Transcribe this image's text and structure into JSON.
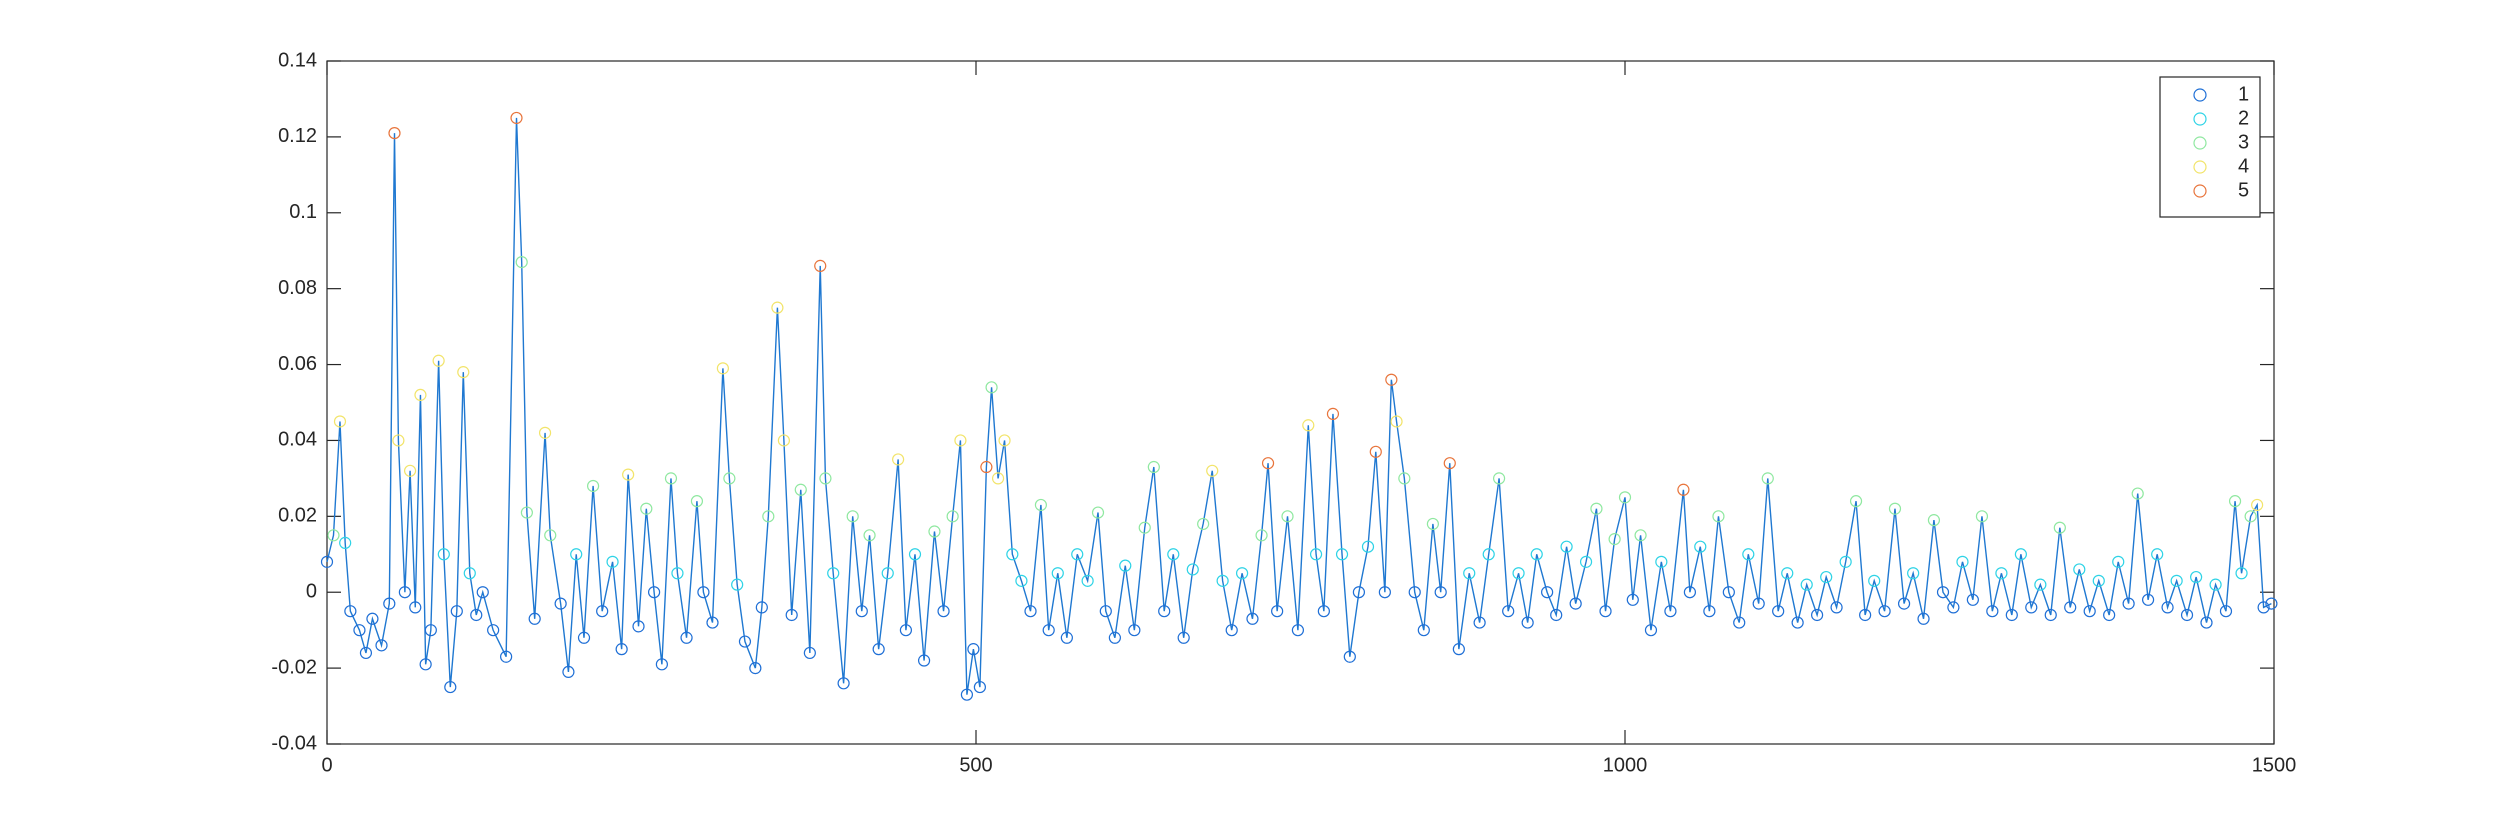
{
  "chart_data": {
    "type": "line",
    "xlim": [
      0,
      1500
    ],
    "xticks": [
      0,
      500,
      1000,
      1500
    ],
    "ylim": [
      -0.04,
      0.14
    ],
    "yticks": [
      -0.04,
      -0.02,
      0,
      0.02,
      0.04,
      0.06,
      0.08,
      0.1,
      0.12,
      0.14
    ],
    "line_color": "#1f78d1",
    "legend": "upper right",
    "series": [
      {
        "name": "1",
        "color": "#1f6fd6"
      },
      {
        "name": "2",
        "color": "#2ed3e6"
      },
      {
        "name": "3",
        "color": "#8fe8a0"
      },
      {
        "name": "4",
        "color": "#f2e46a"
      },
      {
        "name": "5",
        "color": "#e8743b"
      }
    ],
    "x": [
      0,
      5,
      10,
      14,
      18,
      25,
      30,
      35,
      42,
      48,
      52,
      55,
      60,
      64,
      68,
      72,
      76,
      80,
      86,
      90,
      95,
      100,
      105,
      110,
      115,
      120,
      128,
      138,
      146,
      150,
      154,
      160,
      168,
      172,
      180,
      186,
      192,
      198,
      205,
      212,
      220,
      227,
      232,
      240,
      246,
      252,
      258,
      265,
      270,
      277,
      285,
      290,
      297,
      305,
      310,
      316,
      322,
      330,
      335,
      340,
      347,
      352,
      358,
      365,
      372,
      380,
      384,
      390,
      398,
      405,
      412,
      418,
      425,
      432,
      440,
      446,
      453,
      460,
      468,
      475,
      482,
      488,
      493,
      498,
      503,
      508,
      512,
      517,
      522,
      528,
      535,
      542,
      550,
      556,
      563,
      570,
      578,
      586,
      594,
      600,
      607,
      615,
      622,
      630,
      637,
      645,
      652,
      660,
      667,
      675,
      682,
      690,
      697,
      705,
      713,
      720,
      725,
      732,
      740,
      748,
      756,
      762,
      768,
      775,
      782,
      788,
      795,
      802,
      808,
      815,
      820,
      824,
      830,
      838,
      845,
      852,
      858,
      865,
      872,
      880,
      888,
      895,
      903,
      910,
      918,
      925,
      932,
      940,
      947,
      955,
      962,
      970,
      978,
      985,
      992,
      1000,
      1006,
      1012,
      1020,
      1028,
      1035,
      1045,
      1050,
      1058,
      1065,
      1072,
      1080,
      1088,
      1095,
      1103,
      1110,
      1118,
      1125,
      1133,
      1140,
      1148,
      1155,
      1163,
      1170,
      1178,
      1185,
      1192,
      1200,
      1208,
      1215,
      1222,
      1230,
      1238,
      1245,
      1253,
      1260,
      1268,
      1275,
      1283,
      1290,
      1298,
      1305,
      1313,
      1320,
      1328,
      1335,
      1343,
      1350,
      1358,
      1365,
      1373,
      1380,
      1388,
      1395,
      1403,
      1410,
      1418,
      1425,
      1433,
      1440,
      1448,
      1455,
      1463,
      1470,
      1475,
      1482,
      1487,
      1492,
      1498
    ],
    "values": [
      0.008,
      0.015,
      0.045,
      0.013,
      -0.005,
      -0.01,
      -0.016,
      -0.007,
      -0.014,
      -0.003,
      0.121,
      0.04,
      0,
      0.032,
      -0.004,
      0.052,
      -0.019,
      -0.01,
      0.061,
      0.01,
      -0.025,
      -0.005,
      0.058,
      0.005,
      -0.006,
      0,
      -0.01,
      -0.017,
      0.125,
      0.087,
      0.021,
      -0.007,
      0.042,
      0.015,
      -0.003,
      -0.021,
      0.01,
      -0.012,
      0.028,
      -0.005,
      0.008,
      -0.015,
      0.031,
      -0.009,
      0.022,
      0,
      -0.019,
      0.03,
      0.005,
      -0.012,
      0.024,
      0,
      -0.008,
      0.059,
      0.03,
      0.002,
      -0.013,
      -0.02,
      -0.004,
      0.02,
      0.075,
      0.04,
      -0.006,
      0.027,
      -0.016,
      0.086,
      0.03,
      0.005,
      -0.024,
      0.02,
      -0.005,
      0.015,
      -0.015,
      0.005,
      0.035,
      -0.01,
      0.01,
      -0.018,
      0.016,
      -0.005,
      0.02,
      0.04,
      -0.027,
      -0.015,
      -0.025,
      0.033,
      0.054,
      0.03,
      0.04,
      0.01,
      0.003,
      -0.005,
      0.023,
      -0.01,
      0.005,
      -0.012,
      0.01,
      0.003,
      0.021,
      -0.005,
      -0.012,
      0.007,
      -0.01,
      0.017,
      0.033,
      -0.005,
      0.01,
      -0.012,
      0.006,
      0.018,
      0.032,
      0.003,
      -0.01,
      0.005,
      -0.007,
      0.015,
      0.034,
      -0.005,
      0.02,
      -0.01,
      0.044,
      0.01,
      -0.005,
      0.047,
      0.01,
      -0.017,
      0,
      0.012,
      0.037,
      0,
      0.056,
      0.045,
      0.03,
      0,
      -0.01,
      0.018,
      0,
      0.034,
      -0.015,
      0.005,
      -0.008,
      0.01,
      0.03,
      -0.005,
      0.005,
      -0.008,
      0.01,
      0,
      -0.006,
      0.012,
      -0.003,
      0.008,
      0.022,
      -0.005,
      0.014,
      0.025,
      -0.002,
      0.015,
      -0.01,
      0.008,
      -0.005,
      0.027,
      0,
      0.012,
      -0.005,
      0.02,
      0,
      -0.008,
      0.01,
      -0.003,
      0.03,
      -0.005,
      0.005,
      -0.008,
      0.002,
      -0.006,
      0.004,
      -0.004,
      0.008,
      0.024,
      -0.006,
      0.003,
      -0.005,
      0.022,
      -0.003,
      0.005,
      -0.007,
      0.019,
      0,
      -0.004,
      0.008,
      -0.002,
      0.02,
      -0.005,
      0.005,
      -0.006,
      0.01,
      -0.004,
      0.002,
      -0.006,
      0.017,
      -0.004,
      0.006,
      -0.005,
      0.003,
      -0.006,
      0.008,
      -0.003,
      0.026,
      -0.002,
      0.01,
      -0.004,
      0.003,
      -0.006,
      0.004,
      -0.008,
      0.002,
      -0.005,
      0.024,
      0.005,
      0.02,
      0.023,
      -0.004,
      -0.003
    ],
    "groups": [
      0,
      2,
      3,
      1,
      0,
      0,
      0,
      0,
      0,
      0,
      4,
      3,
      0,
      3,
      0,
      3,
      0,
      0,
      3,
      1,
      0,
      0,
      3,
      1,
      0,
      0,
      0,
      0,
      4,
      2,
      2,
      0,
      3,
      2,
      0,
      0,
      1,
      0,
      2,
      0,
      1,
      0,
      3,
      0,
      2,
      0,
      0,
      2,
      1,
      0,
      2,
      0,
      0,
      3,
      2,
      1,
      0,
      0,
      0,
      2,
      3,
      3,
      0,
      2,
      0,
      4,
      2,
      1,
      0,
      2,
      0,
      2,
      0,
      1,
      3,
      0,
      1,
      0,
      2,
      0,
      2,
      3,
      0,
      0,
      0,
      4,
      2,
      3,
      3,
      1,
      1,
      0,
      2,
      0,
      1,
      0,
      1,
      1,
      2,
      0,
      0,
      1,
      0,
      2,
      2,
      0,
      1,
      0,
      1,
      2,
      3,
      1,
      0,
      1,
      0,
      2,
      4,
      0,
      2,
      0,
      3,
      1,
      0,
      4,
      1,
      0,
      0,
      1,
      4,
      0,
      4,
      3,
      2,
      0,
      0,
      2,
      0,
      4,
      0,
      1,
      0,
      1,
      2,
      0,
      1,
      0,
      1,
      0,
      0,
      1,
      0,
      1,
      2,
      0,
      2,
      2,
      0,
      2,
      0,
      1,
      0,
      4,
      0,
      1,
      0,
      2,
      0,
      0,
      1,
      0,
      2,
      0,
      1,
      0,
      1,
      0,
      1,
      0,
      1,
      2,
      0,
      1,
      0,
      2,
      0,
      1,
      0,
      2,
      0,
      0,
      1,
      0,
      2,
      0,
      1,
      0,
      1,
      0,
      1,
      0,
      2,
      0,
      1,
      0,
      1,
      0,
      1,
      0,
      2,
      0,
      1,
      0,
      1,
      0,
      1,
      0,
      1,
      0,
      2,
      1,
      2,
      3,
      0,
      0
    ]
  }
}
